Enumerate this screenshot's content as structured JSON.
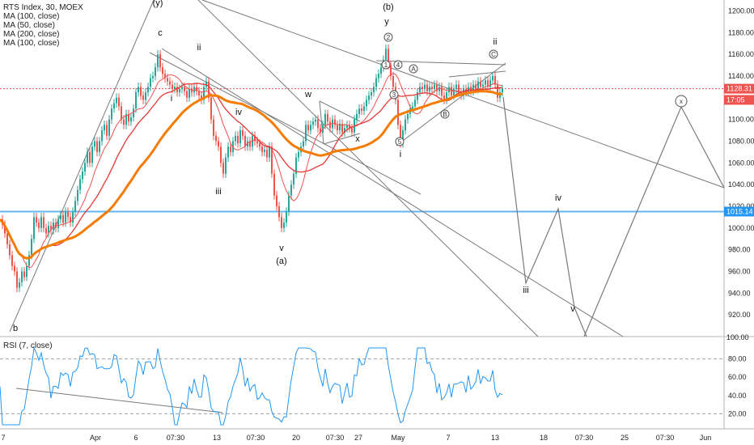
{
  "chart_data": {
    "type": "line",
    "symbol": "RTS Index, 30, MOEX",
    "price_legend": [
      "MA (100, close)",
      "MA (50, close)",
      "MA (200, close)",
      "MA (100, close)"
    ],
    "price_axis": {
      "ylim": [
        900,
        1210
      ],
      "ticks": [
        920,
        940,
        960,
        980,
        1000,
        1020,
        1040,
        1060,
        1080,
        1100,
        1120,
        1140,
        1160,
        1180,
        1200
      ]
    },
    "x_axis": {
      "ticks": [
        "7",
        "Apr",
        "6",
        "07:30",
        "13",
        "07:30",
        "20",
        "07:30",
        "27",
        "May",
        "7",
        "13",
        "18",
        "07:30",
        "25",
        "07:30",
        "Jun"
      ]
    },
    "price_badges": [
      {
        "label": "1128.31",
        "value": 1128.31,
        "color": "#ef5350"
      },
      {
        "label": "17:05",
        "value": 1118,
        "color": "#ef5350"
      },
      {
        "label": "1015.14",
        "value": 1015.14,
        "color": "#2196f3"
      }
    ],
    "horizontal_line": {
      "value": 1015.14,
      "color": "#64b5f6"
    },
    "dotted_line": {
      "value": 1128.31,
      "color": "#ef5350"
    },
    "close_series": [
      [
        0,
        1008
      ],
      [
        3,
        1003
      ],
      [
        6,
        995
      ],
      [
        9,
        985
      ],
      [
        12,
        975
      ],
      [
        15,
        965
      ],
      [
        18,
        960
      ],
      [
        21,
        945
      ],
      [
        24,
        950
      ],
      [
        27,
        960
      ],
      [
        30,
        955
      ],
      [
        33,
        965
      ],
      [
        36,
        975
      ],
      [
        39,
        990
      ],
      [
        42,
        1010
      ],
      [
        45,
        1005
      ],
      [
        48,
        1000
      ],
      [
        51,
        1010
      ],
      [
        54,
        1000
      ],
      [
        57,
        995
      ],
      [
        60,
        1002
      ],
      [
        63,
        998
      ],
      [
        66,
        1005
      ],
      [
        69,
        1000
      ],
      [
        72,
        1008
      ],
      [
        75,
        1012
      ],
      [
        78,
        1005
      ],
      [
        81,
        1015
      ],
      [
        84,
        1010
      ],
      [
        87,
        1005
      ],
      [
        90,
        1015
      ],
      [
        93,
        1025
      ],
      [
        96,
        1035
      ],
      [
        99,
        1045
      ],
      [
        102,
        1052
      ],
      [
        105,
        1060
      ],
      [
        108,
        1070
      ],
      [
        111,
        1060
      ],
      [
        114,
        1075
      ],
      [
        117,
        1080
      ],
      [
        120,
        1070
      ],
      [
        123,
        1080
      ],
      [
        126,
        1090
      ],
      [
        129,
        1095
      ],
      [
        132,
        1085
      ],
      [
        135,
        1100
      ],
      [
        138,
        1110
      ],
      [
        141,
        1115
      ],
      [
        144,
        1120
      ],
      [
        147,
        1112
      ],
      [
        150,
        1100
      ],
      [
        153,
        1095
      ],
      [
        156,
        1105
      ],
      [
        159,
        1098
      ],
      [
        162,
        1102
      ],
      [
        165,
        1110
      ],
      [
        168,
        1125
      ],
      [
        171,
        1130
      ],
      [
        174,
        1122
      ],
      [
        177,
        1118
      ],
      [
        180,
        1125
      ],
      [
        183,
        1130
      ],
      [
        186,
        1138
      ],
      [
        189,
        1140
      ],
      [
        192,
        1148
      ],
      [
        195,
        1160
      ],
      [
        198,
        1148
      ],
      [
        201,
        1142
      ],
      [
        204,
        1138
      ],
      [
        207,
        1135
      ],
      [
        210,
        1132
      ],
      [
        213,
        1128
      ],
      [
        216,
        1130
      ],
      [
        219,
        1125
      ],
      [
        222,
        1128
      ],
      [
        225,
        1130
      ],
      [
        228,
        1126
      ],
      [
        231,
        1120
      ],
      [
        234,
        1128
      ],
      [
        237,
        1125
      ],
      [
        240,
        1130
      ],
      [
        243,
        1126
      ],
      [
        246,
        1122
      ],
      [
        249,
        1118
      ],
      [
        252,
        1130
      ],
      [
        255,
        1135
      ],
      [
        258,
        1120
      ],
      [
        261,
        1100
      ],
      [
        264,
        1085
      ],
      [
        267,
        1080
      ],
      [
        270,
        1075
      ],
      [
        273,
        1060
      ],
      [
        276,
        1050
      ],
      [
        279,
        1065
      ],
      [
        282,
        1075
      ],
      [
        285,
        1070
      ],
      [
        288,
        1080
      ],
      [
        291,
        1085
      ],
      [
        294,
        1078
      ],
      [
        297,
        1090
      ],
      [
        300,
        1085
      ],
      [
        303,
        1075
      ],
      [
        306,
        1080
      ],
      [
        309,
        1075
      ],
      [
        312,
        1085
      ],
      [
        315,
        1080
      ],
      [
        318,
        1078
      ],
      [
        321,
        1075
      ],
      [
        324,
        1070
      ],
      [
        327,
        1072
      ],
      [
        330,
        1065
      ],
      [
        333,
        1075
      ],
      [
        336,
        1050
      ],
      [
        339,
        1030
      ],
      [
        342,
        1020
      ],
      [
        345,
        1010
      ],
      [
        348,
        1000
      ],
      [
        351,
        1005
      ],
      [
        354,
        1015
      ],
      [
        357,
        1030
      ],
      [
        360,
        1040
      ],
      [
        363,
        1050
      ],
      [
        366,
        1065
      ],
      [
        369,
        1070
      ],
      [
        372,
        1075
      ],
      [
        375,
        1080
      ],
      [
        378,
        1095
      ],
      [
        381,
        1090
      ],
      [
        384,
        1095
      ],
      [
        387,
        1098
      ],
      [
        390,
        1100
      ],
      [
        393,
        1092
      ],
      [
        396,
        1088
      ],
      [
        399,
        1095
      ],
      [
        402,
        1105
      ],
      [
        405,
        1098
      ],
      [
        408,
        1092
      ],
      [
        411,
        1100
      ],
      [
        414,
        1095
      ],
      [
        417,
        1090
      ],
      [
        420,
        1096
      ],
      [
        423,
        1088
      ],
      [
        426,
        1092
      ],
      [
        429,
        1095
      ],
      [
        432,
        1092
      ],
      [
        435,
        1088
      ],
      [
        438,
        1100
      ],
      [
        441,
        1105
      ],
      [
        444,
        1110
      ],
      [
        447,
        1108
      ],
      [
        450,
        1112
      ],
      [
        453,
        1118
      ],
      [
        456,
        1122
      ],
      [
        459,
        1125
      ],
      [
        462,
        1130
      ],
      [
        465,
        1138
      ],
      [
        468,
        1142
      ],
      [
        471,
        1148
      ],
      [
        474,
        1155
      ],
      [
        477,
        1165
      ],
      [
        480,
        1150
      ],
      [
        483,
        1140
      ],
      [
        486,
        1130
      ],
      [
        489,
        1118
      ],
      [
        492,
        1095
      ],
      [
        495,
        1078
      ],
      [
        498,
        1090
      ],
      [
        501,
        1100
      ],
      [
        504,
        1105
      ],
      [
        507,
        1110
      ],
      [
        510,
        1112
      ],
      [
        513,
        1118
      ],
      [
        516,
        1125
      ],
      [
        519,
        1130
      ],
      [
        522,
        1128
      ],
      [
        525,
        1132
      ],
      [
        528,
        1126
      ],
      [
        531,
        1130
      ],
      [
        534,
        1128
      ],
      [
        537,
        1132
      ],
      [
        540,
        1126
      ],
      [
        543,
        1130
      ],
      [
        546,
        1122
      ],
      [
        549,
        1118
      ],
      [
        552,
        1125
      ],
      [
        555,
        1130
      ],
      [
        558,
        1122
      ],
      [
        561,
        1128
      ],
      [
        564,
        1132
      ],
      [
        567,
        1125
      ],
      [
        570,
        1122
      ],
      [
        573,
        1128
      ],
      [
        576,
        1125
      ],
      [
        579,
        1130
      ],
      [
        582,
        1126
      ],
      [
        585,
        1132
      ],
      [
        588,
        1128
      ],
      [
        591,
        1135
      ],
      [
        594,
        1130
      ],
      [
        597,
        1132
      ],
      [
        600,
        1136
      ],
      [
        603,
        1130
      ],
      [
        606,
        1136
      ],
      [
        609,
        1140
      ],
      [
        612,
        1132
      ],
      [
        615,
        1120
      ],
      [
        618,
        1125
      ],
      [
        621,
        1128
      ]
    ],
    "rsi": {
      "legend": "RSI (7, close)",
      "ylim": [
        0,
        100
      ],
      "ticks": [
        20,
        40,
        60,
        80
      ],
      "levels": [
        20,
        80
      ],
      "color": "#2196f3"
    },
    "wave_labels": [
      "(y)",
      "c",
      "ii",
      "i",
      "iv",
      "iii",
      "w",
      "v",
      "(a)",
      "x",
      "(b)",
      "y",
      "i",
      "ii",
      "iii",
      "iv",
      "v",
      "b"
    ],
    "circled_labels": [
      "2",
      "1",
      "4",
      "3",
      "5",
      "A",
      "B",
      "C",
      "x"
    ]
  }
}
